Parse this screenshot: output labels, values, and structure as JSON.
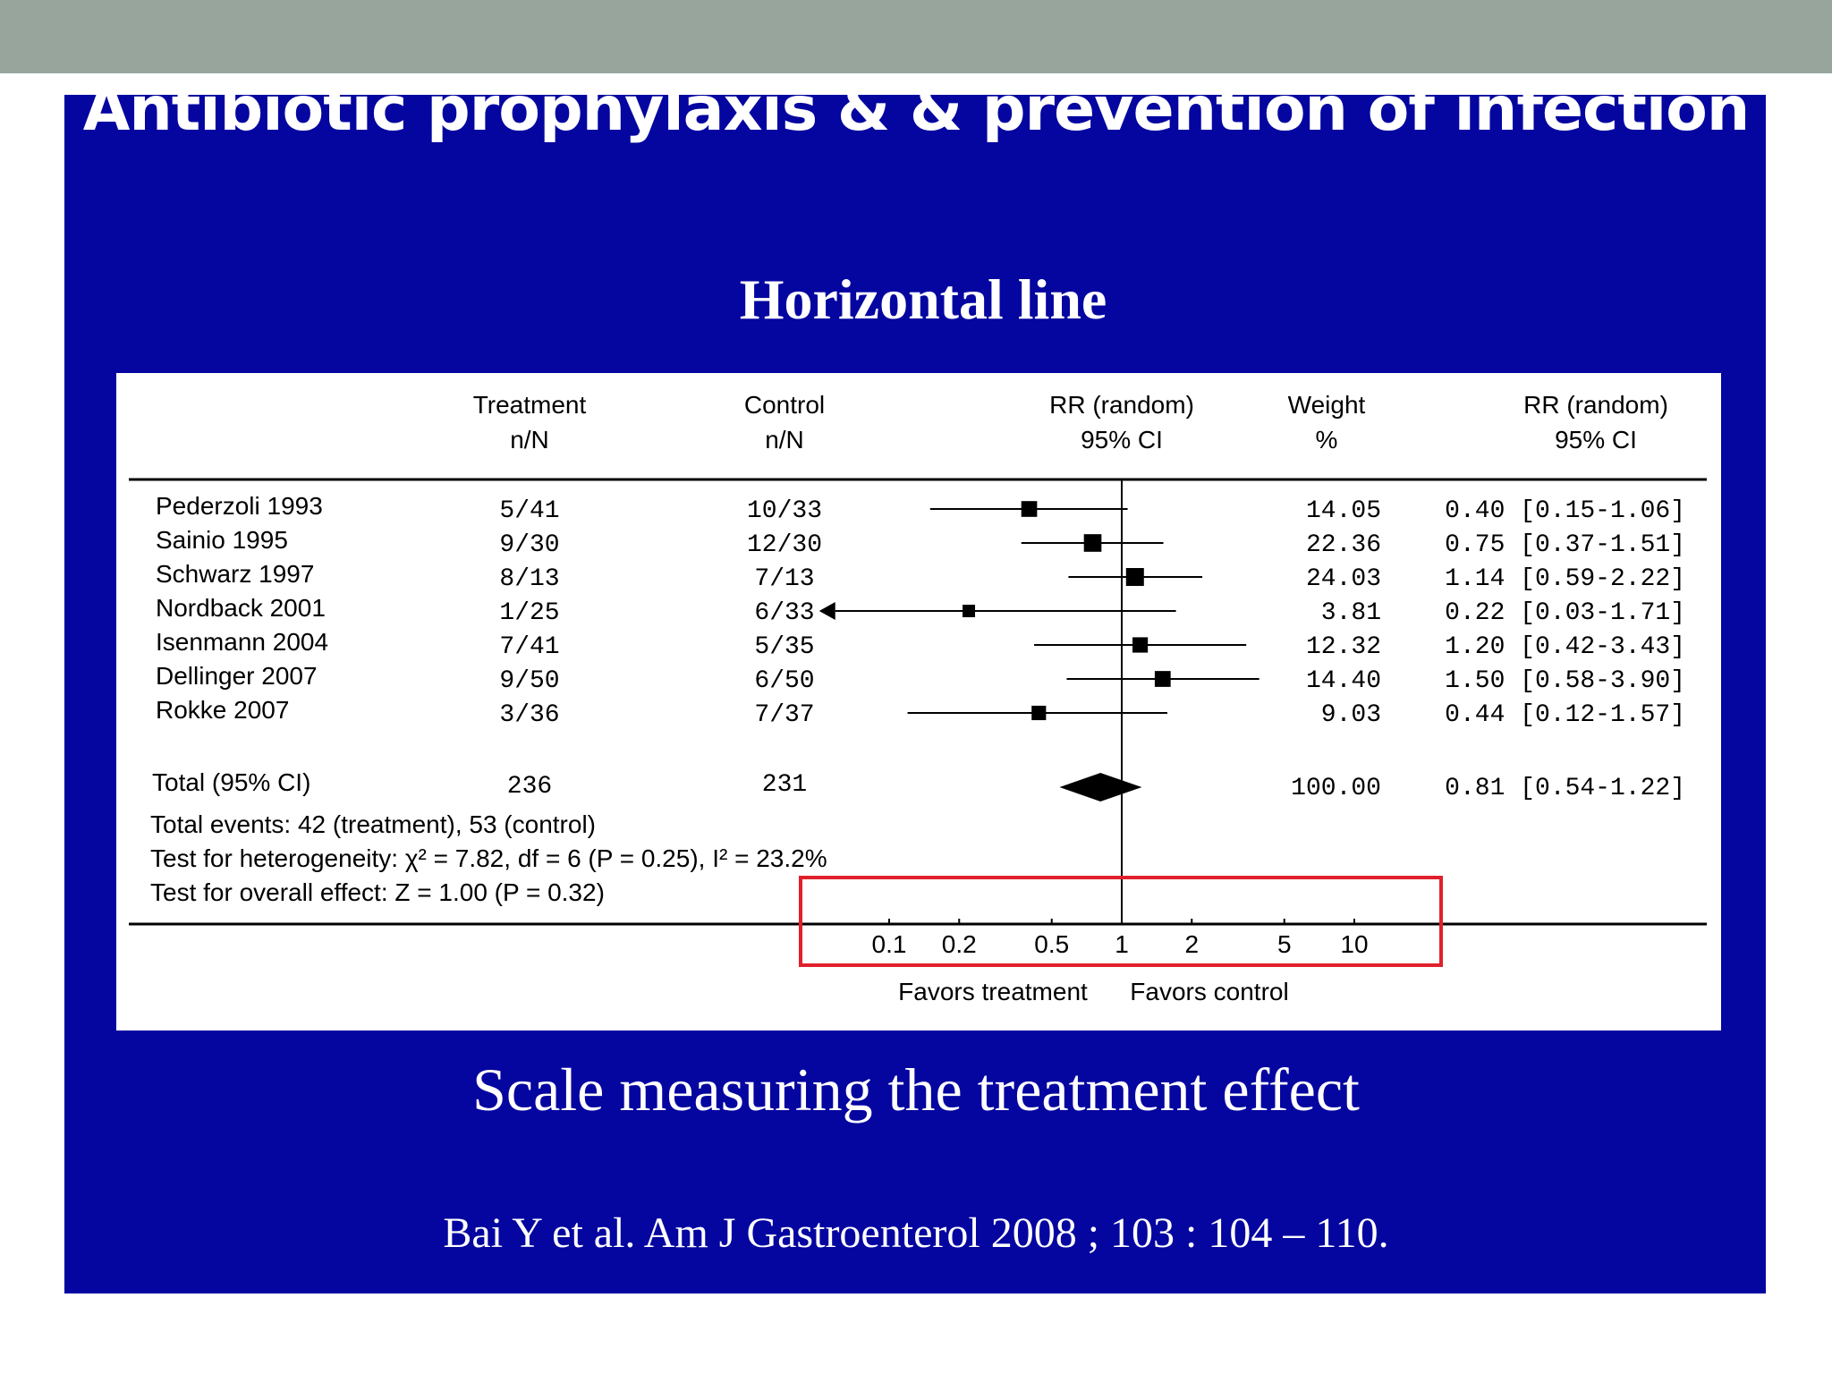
{
  "slide": {
    "title": "Antibiotic prophylaxis & & prevention of infection",
    "subtitle": "Horizontal line",
    "caption": "Scale measuring the treatment effect",
    "citation": "Bai Y et al. Am J Gastroenterol 2008 ; 103 : 104 – 110."
  },
  "colors": {
    "slide_bg": "#0505a0",
    "top_band": "#97a59d",
    "highlight_box": "#e0202a",
    "plot_ink": "#000000"
  },
  "chart_data": {
    "type": "forest",
    "scale": "log",
    "xlim": [
      0.05,
      20
    ],
    "null_value": 1,
    "headers": {
      "treatment": [
        "Treatment",
        "n/N"
      ],
      "control": [
        "Control",
        "n/N"
      ],
      "rr_plot": [
        "RR (random)",
        "95% CI"
      ],
      "weight": [
        "Weight",
        "%"
      ],
      "rr_text": [
        "RR (random)",
        "95% CI"
      ]
    },
    "studies": [
      {
        "name": "Pederzoli 1993",
        "treatment": "5/41",
        "control": "10/33",
        "weight": 14.05,
        "weight_text": "14.05",
        "rr": 0.4,
        "ci_low": 0.15,
        "ci_high": 1.06,
        "rr_text": "0.40 [0.15-1.06]"
      },
      {
        "name": "Sainio 1995",
        "treatment": "9/30",
        "control": "12/30",
        "weight": 22.36,
        "weight_text": "22.36",
        "rr": 0.75,
        "ci_low": 0.37,
        "ci_high": 1.51,
        "rr_text": "0.75 [0.37-1.51]"
      },
      {
        "name": "Schwarz 1997",
        "treatment": "8/13",
        "control": "7/13",
        "weight": 24.03,
        "weight_text": "24.03",
        "rr": 1.14,
        "ci_low": 0.59,
        "ci_high": 2.22,
        "rr_text": "1.14 [0.59-2.22]"
      },
      {
        "name": "Nordback 2001",
        "treatment": "1/25",
        "control": "6/33",
        "weight": 3.81,
        "weight_text": "3.81",
        "rr": 0.22,
        "ci_low": 0.03,
        "ci_high": 1.71,
        "rr_text": "0.22 [0.03-1.71]"
      },
      {
        "name": "Isenmann 2004",
        "treatment": "7/41",
        "control": "5/35",
        "weight": 12.32,
        "weight_text": "12.32",
        "rr": 1.2,
        "ci_low": 0.42,
        "ci_high": 3.43,
        "rr_text": "1.20 [0.42-3.43]"
      },
      {
        "name": "Dellinger 2007",
        "treatment": "9/50",
        "control": "6/50",
        "weight": 14.4,
        "weight_text": "14.40",
        "rr": 1.5,
        "ci_low": 0.58,
        "ci_high": 3.9,
        "rr_text": "1.50 [0.58-3.90]"
      },
      {
        "name": "Rokke 2007",
        "treatment": "3/36",
        "control": "7/37",
        "weight": 9.03,
        "weight_text": "9.03",
        "rr": 0.44,
        "ci_low": 0.12,
        "ci_high": 1.57,
        "rr_text": "0.44 [0.12-1.57]"
      }
    ],
    "total": {
      "name": "Total (95% CI)",
      "treatment": "236",
      "control": "231",
      "weight_text": "100.00",
      "rr": 0.81,
      "ci_low": 0.54,
      "ci_high": 1.22,
      "rr_text": "0.81 [0.54-1.22]"
    },
    "notes": [
      "Total events: 42 (treatment), 53 (control)",
      "Test for heterogeneity: χ² = 7.82, df = 6 (P = 0.25), I² = 23.2%",
      "Test for overall effect: Z = 1.00 (P = 0.32)"
    ],
    "axis_ticks": [
      {
        "value": 0.1,
        "label": "0.1"
      },
      {
        "value": 0.2,
        "label": "0.2"
      },
      {
        "value": 0.5,
        "label": "0.5"
      },
      {
        "value": 1,
        "label": "1"
      },
      {
        "value": 2,
        "label": "2"
      },
      {
        "value": 5,
        "label": "5"
      },
      {
        "value": 10,
        "label": "10"
      }
    ],
    "favors_left": "Favors treatment",
    "favors_right": "Favors control"
  }
}
